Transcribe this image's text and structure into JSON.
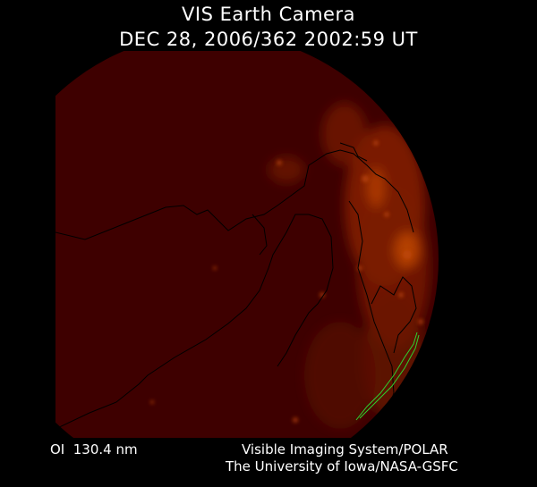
{
  "header": {
    "title": "VIS Earth Camera",
    "timestamp": "DEC 28, 2006/362 2002:59 UT"
  },
  "footer": {
    "band": "OI  130.4 nm",
    "credit_line1": "Visible Imaging System/POLAR",
    "credit_line2": "The University of Iowa/NASA-GSFC"
  },
  "colors": {
    "background": "#000000",
    "disk": "#3e0000",
    "aurora_glow": "#d45a0a",
    "coastlines": "#000000",
    "overlay_green": "#2fd12f"
  }
}
